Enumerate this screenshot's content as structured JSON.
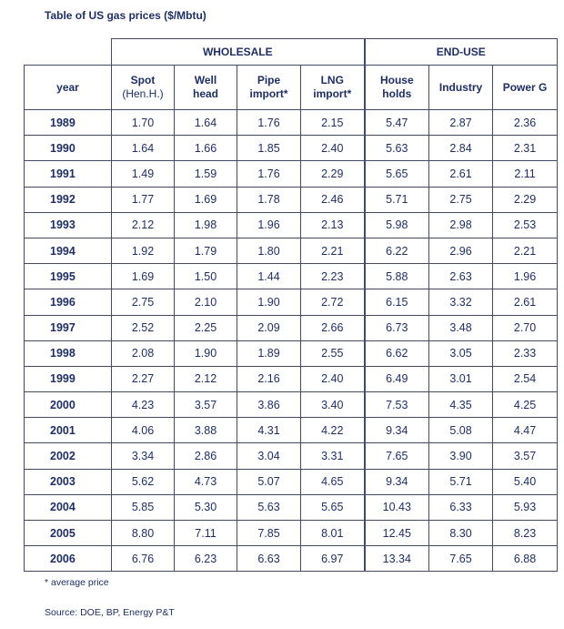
{
  "title": "Table of US gas prices ($/Mbtu)",
  "groups": {
    "wholesale": "WHOLESALE",
    "end_use": "END-USE"
  },
  "columns": {
    "year": "year",
    "spot": {
      "line1": "Spot",
      "line2": "(Hen.H.)"
    },
    "wellhead": {
      "line1": "Well",
      "line2": "head"
    },
    "pipe": {
      "line1": "Pipe",
      "line2": "import*"
    },
    "lng": {
      "line1": "LNG",
      "line2": "import*"
    },
    "households": {
      "line1": "House",
      "line2": "holds"
    },
    "industry": "Industry",
    "power": "Power G"
  },
  "rows": [
    [
      "1989",
      "1.70",
      "1.64",
      "1.76",
      "2.15",
      "5.47",
      "2.87",
      "2.36"
    ],
    [
      "1990",
      "1.64",
      "1.66",
      "1.85",
      "2.40",
      "5.63",
      "2.84",
      "2.31"
    ],
    [
      "1991",
      "1.49",
      "1.59",
      "1.76",
      "2.29",
      "5.65",
      "2.61",
      "2.11"
    ],
    [
      "1992",
      "1.77",
      "1.69",
      "1.78",
      "2.46",
      "5.71",
      "2.75",
      "2.29"
    ],
    [
      "1993",
      "2.12",
      "1.98",
      "1.96",
      "2.13",
      "5.98",
      "2.98",
      "2.53"
    ],
    [
      "1994",
      "1.92",
      "1.79",
      "1.80",
      "2.21",
      "6.22",
      "2.96",
      "2.21"
    ],
    [
      "1995",
      "1.69",
      "1.50",
      "1.44",
      "2.23",
      "5.88",
      "2.63",
      "1.96"
    ],
    [
      "1996",
      "2.75",
      "2.10",
      "1.90",
      "2.72",
      "6.15",
      "3.32",
      "2.61"
    ],
    [
      "1997",
      "2.52",
      "2.25",
      "2.09",
      "2.66",
      "6.73",
      "3.48",
      "2.70"
    ],
    [
      "1998",
      "2.08",
      "1.90",
      "1.89",
      "2.55",
      "6.62",
      "3.05",
      "2.33"
    ],
    [
      "1999",
      "2.27",
      "2.12",
      "2.16",
      "2.40",
      "6.49",
      "3.01",
      "2.54"
    ],
    [
      "2000",
      "4.23",
      "3.57",
      "3.86",
      "3.40",
      "7.53",
      "4.35",
      "4.25"
    ],
    [
      "2001",
      "4.06",
      "3.88",
      "4.31",
      "4.22",
      "9.34",
      "5.08",
      "4.47"
    ],
    [
      "2002",
      "3.34",
      "2.86",
      "3.04",
      "3.31",
      "7.65",
      "3.90",
      "3.57"
    ],
    [
      "2003",
      "5.62",
      "4.73",
      "5.07",
      "4.65",
      "9.34",
      "5.71",
      "5.40"
    ],
    [
      "2004",
      "5.85",
      "5.30",
      "5.63",
      "5.65",
      "10.43",
      "6.33",
      "5.93"
    ],
    [
      "2005",
      "8.80",
      "7.11",
      "7.85",
      "8.01",
      "12.45",
      "8.30",
      "8.23"
    ],
    [
      "2006",
      "6.76",
      "6.23",
      "6.63",
      "6.97",
      "13.34",
      "7.65",
      "6.88"
    ]
  ],
  "footnote": "* average price",
  "source": "Source: DOE, BP, Energy P&T"
}
